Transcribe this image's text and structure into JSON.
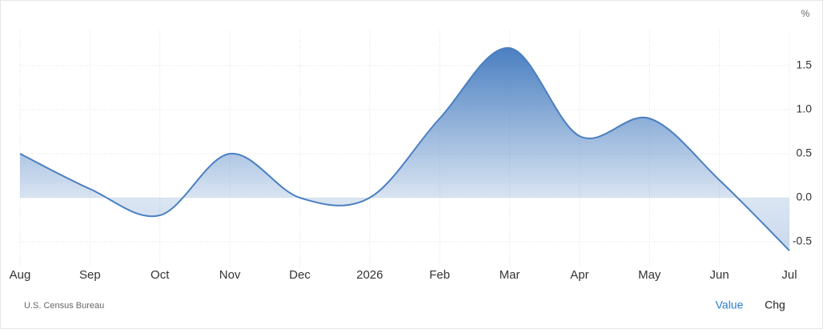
{
  "chart_data": {
    "type": "area",
    "unit": "%",
    "categories": [
      "Aug",
      "Sep",
      "Oct",
      "Nov",
      "Dec",
      "2026",
      "Feb",
      "Mar",
      "Apr",
      "May",
      "Jun",
      "Jul"
    ],
    "values": [
      0.5,
      0.1,
      -0.2,
      0.5,
      0.0,
      0.0,
      0.9,
      1.7,
      0.7,
      0.9,
      0.2,
      -0.6
    ],
    "color": "#4a7fc1",
    "ylim": [
      -0.8,
      1.9
    ],
    "yticks": [
      -0.5,
      {
        "value": 0,
        "label": "0.0"
      },
      0.5,
      {
        "value": 1,
        "label": "1.0"
      },
      1.5
    ],
    "grid": true,
    "source": "U.S. Census Bureau",
    "buttons": [
      "Value",
      "Chg"
    ]
  }
}
